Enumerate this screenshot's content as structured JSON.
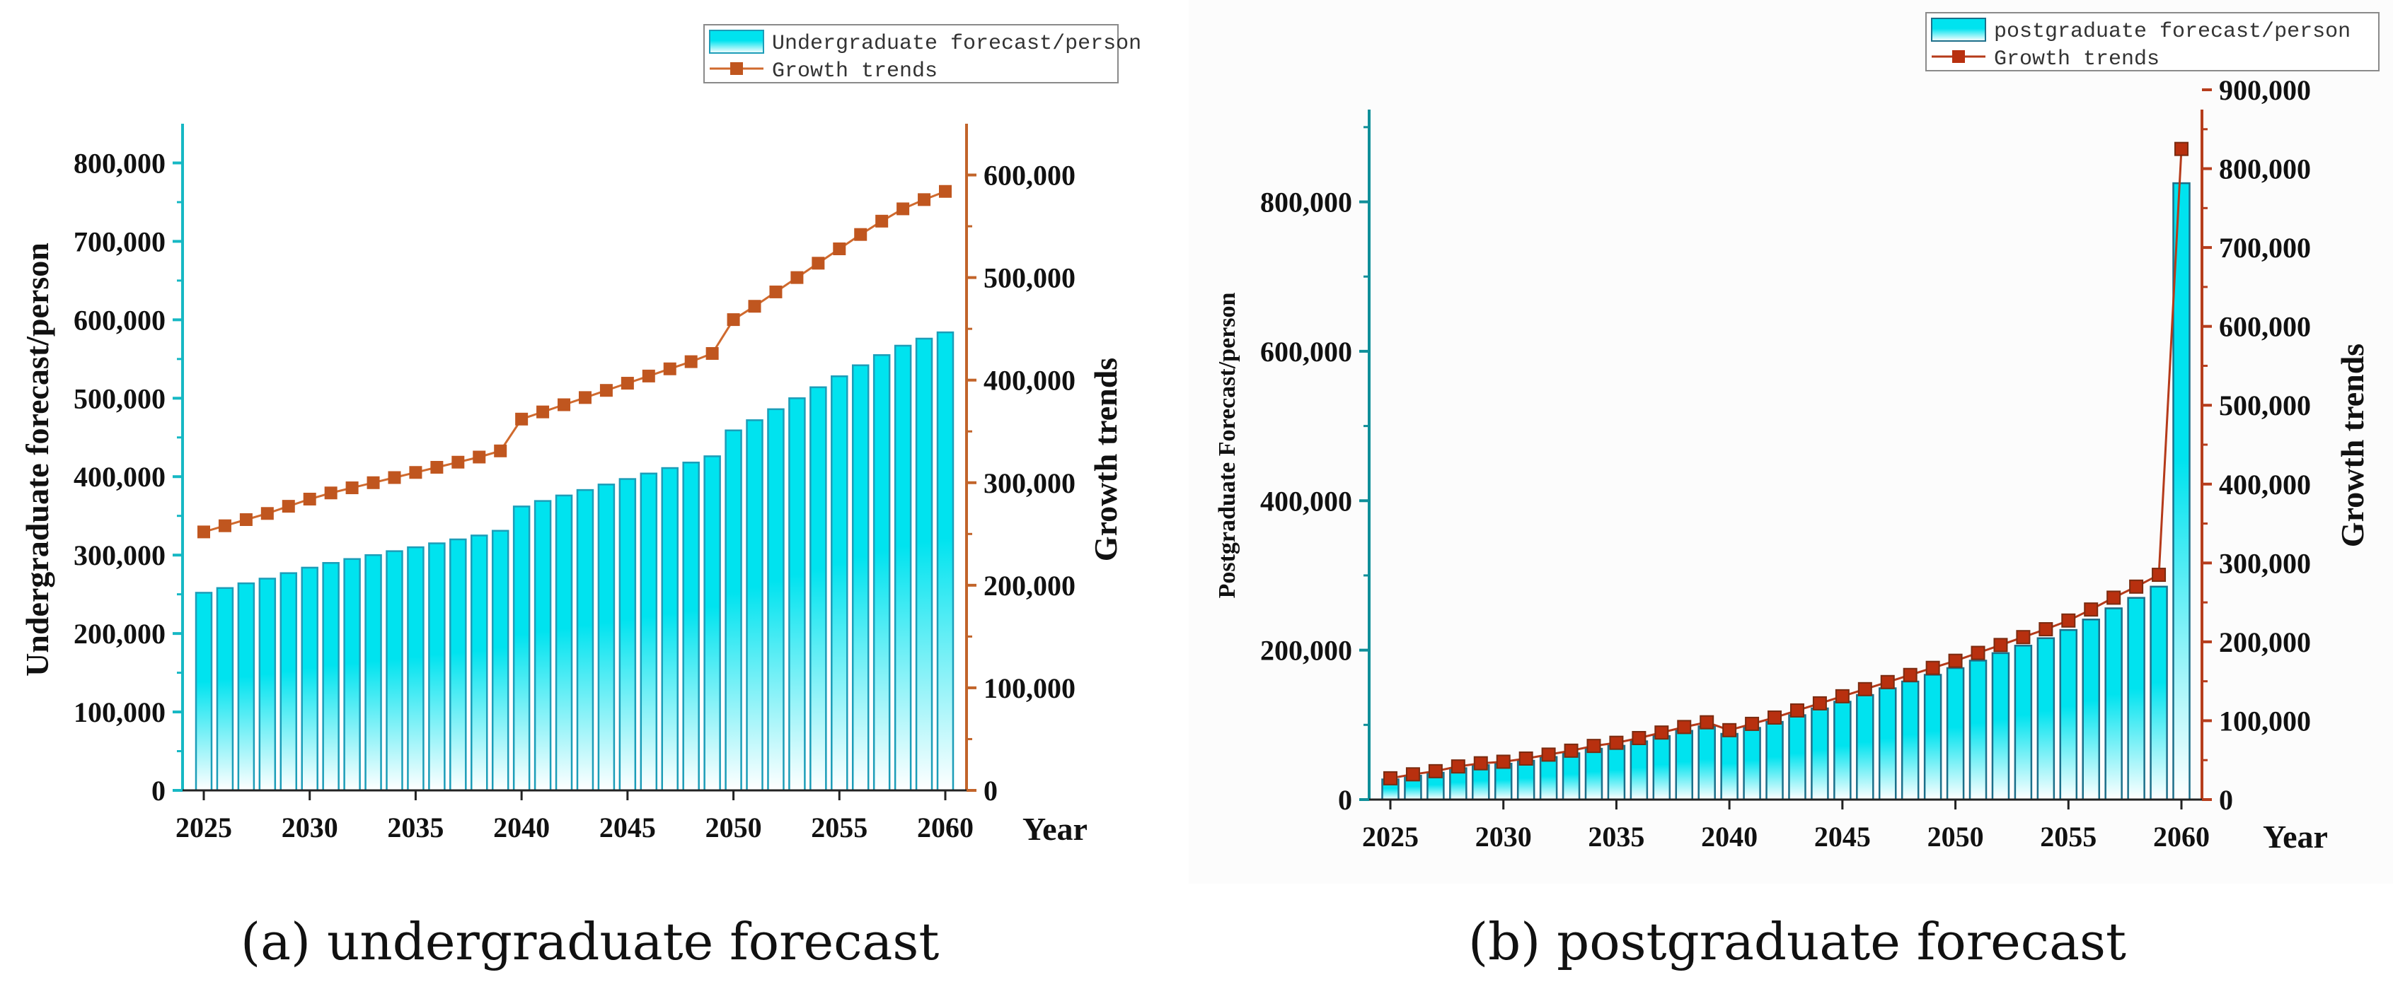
{
  "chart_data": [
    {
      "type": "bar+line",
      "panel": "a",
      "caption": "(a) undergraduate forecast",
      "legend": {
        "bar_label": "Undergraduate forecast/person",
        "line_label": "Growth trends",
        "placement": "top-right"
      },
      "xlabel": "Year",
      "ylabel_left": "Undergraduate forecast/person",
      "ylabel_right": "Growth trends",
      "ylim_left": [
        0,
        850000
      ],
      "ylim_right": [
        0,
        650000
      ],
      "yticks_left": [
        0,
        100000,
        200000,
        300000,
        400000,
        500000,
        600000,
        700000,
        800000
      ],
      "yticks_left_labels": [
        "0",
        "100,000",
        "200,000",
        "300,000",
        "400,000",
        "500,000",
        "600,000",
        "700,000",
        "800,000"
      ],
      "yticks_right": [
        0,
        100000,
        200000,
        300000,
        400000,
        500000,
        600000
      ],
      "yticks_right_labels": [
        "0",
        "100,000",
        "200,000",
        "300,000",
        "400,000",
        "500,000",
        "600,000"
      ],
      "xticks": [
        2025,
        2030,
        2035,
        2040,
        2045,
        2050,
        2055,
        2060
      ],
      "years": [
        2025,
        2026,
        2027,
        2028,
        2029,
        2030,
        2031,
        2032,
        2033,
        2034,
        2035,
        2036,
        2037,
        2038,
        2039,
        2040,
        2041,
        2042,
        2043,
        2044,
        2045,
        2046,
        2047,
        2048,
        2049,
        2050,
        2051,
        2052,
        2053,
        2054,
        2055,
        2056,
        2057,
        2058,
        2059,
        2060
      ],
      "series": [
        {
          "name": "Undergraduate forecast/person",
          "kind": "bar",
          "axis": "left",
          "values": [
            252000,
            258000,
            264000,
            270000,
            277000,
            284000,
            290000,
            295000,
            300000,
            305000,
            310000,
            315000,
            320000,
            325000,
            331000,
            362000,
            369000,
            376000,
            383000,
            390000,
            397000,
            404000,
            411000,
            418000,
            426000,
            459000,
            472000,
            486000,
            500000,
            514000,
            528000,
            542000,
            555000,
            567000,
            576000,
            584000
          ]
        },
        {
          "name": "Growth trends",
          "kind": "line",
          "axis": "right",
          "values": [
            252000,
            258000,
            264000,
            270000,
            277000,
            284000,
            290000,
            295000,
            300000,
            305000,
            310000,
            315000,
            320000,
            325000,
            331000,
            362000,
            369000,
            376000,
            383000,
            390000,
            397000,
            404000,
            411000,
            418000,
            426000,
            459000,
            472000,
            486000,
            500000,
            514000,
            528000,
            542000,
            555000,
            567000,
            576000,
            584000
          ]
        }
      ],
      "colors": {
        "bar_top": "#00e3ef",
        "bar_bottom": "#ffffff",
        "bar_edge": "#1c9db8",
        "line": "#d06a2e",
        "marker": "#c0561f",
        "axis_left": "#16b8c4",
        "axis_right": "#c2642a"
      }
    },
    {
      "type": "bar+line",
      "panel": "b",
      "caption": "(b) postgraduate forecast",
      "legend": {
        "bar_label": "postgraduate forecast/person",
        "line_label": "Growth trends",
        "placement": "top-right"
      },
      "xlabel": "Year",
      "ylabel_left": "Postgraduate Forecast/person",
      "ylabel_right": "Growth trends",
      "ylim_left": [
        0,
        950000
      ],
      "ylim_right": [
        0,
        900000
      ],
      "yticks_left": [
        0,
        200000,
        400000,
        600000,
        800000
      ],
      "yticks_left_labels": [
        "0",
        "200,000",
        "400,000",
        "600,000",
        "800,000"
      ],
      "yticks_right": [
        0,
        100000,
        200000,
        300000,
        400000,
        500000,
        600000,
        700000,
        800000,
        900000
      ],
      "yticks_right_labels": [
        "0",
        "100,000",
        "200,000",
        "300,000",
        "400,000",
        "500,000",
        "600,000",
        "700,000",
        "800,000",
        "900,000"
      ],
      "xticks": [
        2025,
        2030,
        2035,
        2040,
        2045,
        2050,
        2055,
        2060
      ],
      "years": [
        2025,
        2026,
        2027,
        2028,
        2029,
        2030,
        2031,
        2032,
        2033,
        2034,
        2035,
        2036,
        2037,
        2038,
        2039,
        2040,
        2041,
        2042,
        2043,
        2044,
        2045,
        2046,
        2047,
        2048,
        2049,
        2050,
        2051,
        2052,
        2053,
        2054,
        2055,
        2056,
        2057,
        2058,
        2059,
        2060
      ],
      "series": [
        {
          "name": "postgraduate forecast/person",
          "kind": "bar",
          "axis": "left",
          "values": [
            27000,
            32000,
            36000,
            42000,
            46000,
            48000,
            52000,
            57000,
            62000,
            68000,
            72000,
            78000,
            85000,
            92000,
            98000,
            88000,
            96000,
            104000,
            113000,
            122000,
            131000,
            140000,
            149000,
            158000,
            167000,
            176000,
            186000,
            196000,
            206000,
            216000,
            227000,
            241000,
            256000,
            270000,
            285000,
            825000
          ]
        },
        {
          "name": "Growth trends",
          "kind": "line",
          "axis": "right",
          "values": [
            27000,
            32000,
            36000,
            42000,
            46000,
            48000,
            52000,
            57000,
            62000,
            68000,
            72000,
            78000,
            85000,
            92000,
            98000,
            88000,
            96000,
            104000,
            113000,
            122000,
            131000,
            140000,
            149000,
            158000,
            167000,
            176000,
            186000,
            196000,
            206000,
            216000,
            227000,
            241000,
            256000,
            270000,
            285000,
            825000
          ]
        }
      ],
      "colors": {
        "bar_top": "#00e3ef",
        "bar_bottom": "#ffffff",
        "bar_edge": "#1c6f8a",
        "line": "#b53a1a",
        "marker": "#b8300f",
        "axis_left": "#0f8f99",
        "axis_right": "#b63d1c"
      }
    }
  ]
}
